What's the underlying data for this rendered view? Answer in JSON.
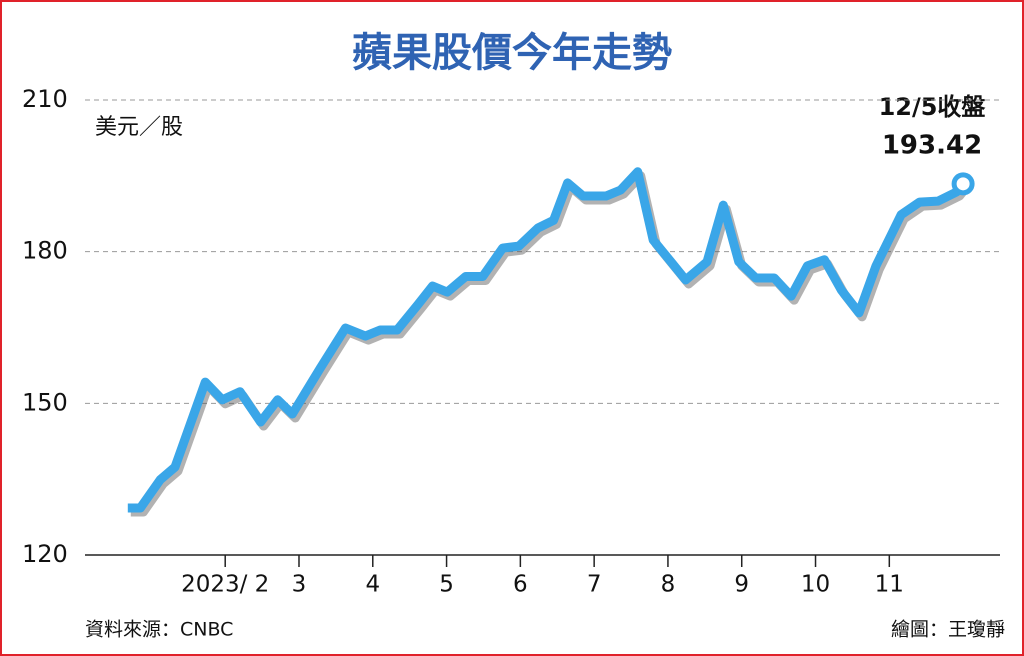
{
  "chart_data": {
    "type": "line",
    "title": "蘋果股價今年走勢",
    "y_label": "美元／股",
    "annotation": "12/5收盤",
    "source": "資料來源：CNBC",
    "credit": "繪圖：王瓊靜",
    "xlim": [
      0.1,
      12.5
    ],
    "xticks": [
      {
        "value": 2,
        "label": "2023/ 2"
      },
      3,
      4,
      5,
      6,
      7,
      8,
      9,
      10,
      11
    ],
    "ylim": [
      120,
      210
    ],
    "yticks": [
      120,
      150,
      180,
      210
    ],
    "grid": true,
    "series": [
      {
        "name": "蘋果股價",
        "color": "#3aa6e8",
        "x": [
          0.68,
          0.85,
          1.12,
          1.32,
          1.73,
          1.96,
          2.2,
          2.48,
          2.71,
          2.91,
          3.29,
          3.63,
          3.9,
          4.1,
          4.33,
          4.61,
          4.81,
          5.01,
          5.26,
          5.49,
          5.76,
          5.98,
          6.24,
          6.45,
          6.64,
          6.85,
          7.16,
          7.36,
          7.59,
          7.8,
          8.04,
          8.24,
          8.53,
          8.75,
          8.96,
          9.19,
          9.44,
          9.67,
          9.89,
          10.12,
          10.35,
          10.59,
          10.82,
          11.16,
          11.41,
          11.66,
          11.91,
          12.0
        ],
        "values": [
          129.3,
          129.3,
          134.9,
          137.4,
          154.2,
          150.7,
          152.3,
          146.3,
          150.7,
          147.9,
          157.0,
          164.9,
          163.3,
          164.5,
          164.5,
          169.5,
          173.2,
          172.0,
          175.1,
          175.1,
          180.7,
          181.1,
          184.7,
          186.2,
          193.6,
          191.0,
          191.0,
          192.2,
          195.8,
          182.3,
          178.0,
          174.4,
          178.0,
          189.2,
          178.0,
          174.8,
          174.8,
          171.2,
          177.2,
          178.4,
          172.4,
          167.9,
          177.2,
          187.3,
          189.8,
          190.0,
          191.8,
          193.42
        ]
      }
    ]
  }
}
